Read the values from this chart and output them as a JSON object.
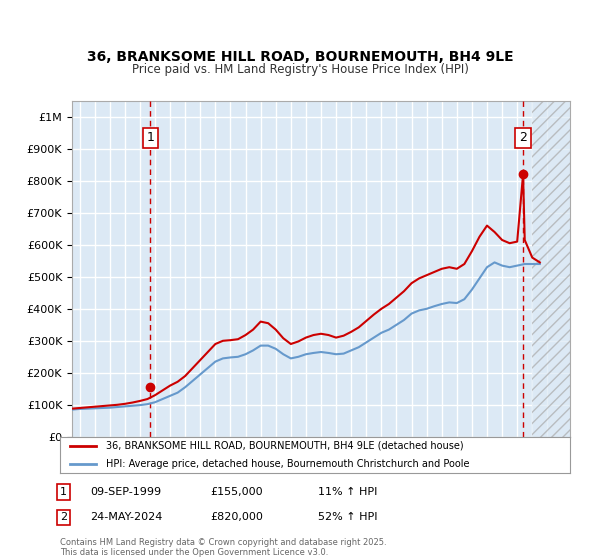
{
  "title_line1": "36, BRANKSOME HILL ROAD, BOURNEMOUTH, BH4 9LE",
  "title_line2": "Price paid vs. HM Land Registry's House Price Index (HPI)",
  "ylabel": "",
  "xlabel": "",
  "background_color": "#ffffff",
  "plot_bg_color": "#dce9f5",
  "grid_color": "#ffffff",
  "point1_label": "1",
  "point1_date": "09-SEP-1999",
  "point1_price": 155000,
  "point1_hpi_note": "11% ↑ HPI",
  "point1_x": 1999.69,
  "point2_label": "2",
  "point2_date": "24-MAY-2024",
  "point2_price": 820000,
  "point2_hpi_note": "52% ↑ HPI",
  "point2_x": 2024.39,
  "ylim": [
    0,
    1050000
  ],
  "xlim_start": 1994.5,
  "xlim_end": 2027.5,
  "legend_label1": "36, BRANKSOME HILL ROAD, BOURNEMOUTH, BH4 9LE (detached house)",
  "legend_label2": "HPI: Average price, detached house, Bournemouth Christchurch and Poole",
  "footer": "Contains HM Land Registry data © Crown copyright and database right 2025.\nThis data is licensed under the Open Government Licence v3.0.",
  "red_line_color": "#cc0000",
  "blue_line_color": "#6699cc",
  "hpi_years": [
    1994.5,
    1995,
    1995.5,
    1996,
    1996.5,
    1997,
    1997.5,
    1998,
    1998.5,
    1999,
    1999.5,
    2000,
    2000.5,
    2001,
    2001.5,
    2002,
    2002.5,
    2003,
    2003.5,
    2004,
    2004.5,
    2005,
    2005.5,
    2006,
    2006.5,
    2007,
    2007.5,
    2008,
    2008.5,
    2009,
    2009.5,
    2010,
    2010.5,
    2011,
    2011.5,
    2012,
    2012.5,
    2013,
    2013.5,
    2014,
    2014.5,
    2015,
    2015.5,
    2016,
    2016.5,
    2017,
    2017.5,
    2018,
    2018.5,
    2019,
    2019.5,
    2020,
    2020.5,
    2021,
    2021.5,
    2022,
    2022.5,
    2023,
    2023.5,
    2024,
    2024.5,
    2025,
    2025.5
  ],
  "hpi_values": [
    85000,
    87000,
    88000,
    89000,
    90000,
    91000,
    93000,
    95000,
    97000,
    99000,
    102000,
    108000,
    118000,
    128000,
    138000,
    155000,
    175000,
    195000,
    215000,
    235000,
    245000,
    248000,
    250000,
    258000,
    270000,
    285000,
    285000,
    275000,
    258000,
    245000,
    250000,
    258000,
    262000,
    265000,
    262000,
    258000,
    260000,
    270000,
    280000,
    295000,
    310000,
    325000,
    335000,
    350000,
    365000,
    385000,
    395000,
    400000,
    408000,
    415000,
    420000,
    418000,
    430000,
    460000,
    495000,
    530000,
    545000,
    535000,
    530000,
    535000,
    540000,
    540000,
    540000
  ],
  "red_years": [
    1994.5,
    1995,
    1995.5,
    1996,
    1996.5,
    1997,
    1997.5,
    1998,
    1998.5,
    1999,
    1999.5,
    2000,
    2000.5,
    2001,
    2001.5,
    2002,
    2002.5,
    2003,
    2003.5,
    2004,
    2004.5,
    2005,
    2005.5,
    2006,
    2006.5,
    2007,
    2007.5,
    2008,
    2008.5,
    2009,
    2009.5,
    2010,
    2010.5,
    2011,
    2011.5,
    2012,
    2012.5,
    2013,
    2013.5,
    2014,
    2014.5,
    2015,
    2015.5,
    2016,
    2016.5,
    2017,
    2017.5,
    2018,
    2018.5,
    2019,
    2019.5,
    2020,
    2020.5,
    2021,
    2021.5,
    2022,
    2022.5,
    2023,
    2023.5,
    2024,
    2024.39,
    2024.5,
    2025,
    2025.5
  ],
  "red_values": [
    88000,
    90000,
    92000,
    94000,
    96000,
    98000,
    100000,
    103000,
    107000,
    112000,
    118000,
    130000,
    145000,
    160000,
    172000,
    190000,
    215000,
    240000,
    265000,
    290000,
    300000,
    302000,
    305000,
    318000,
    335000,
    360000,
    355000,
    335000,
    308000,
    290000,
    298000,
    310000,
    318000,
    322000,
    318000,
    310000,
    316000,
    328000,
    342000,
    362000,
    382000,
    400000,
    415000,
    435000,
    455000,
    480000,
    495000,
    505000,
    515000,
    525000,
    530000,
    525000,
    540000,
    580000,
    625000,
    660000,
    640000,
    615000,
    605000,
    610000,
    820000,
    615000,
    560000,
    545000
  ]
}
